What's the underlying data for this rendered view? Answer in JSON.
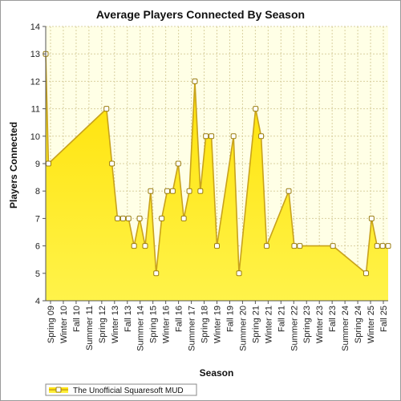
{
  "chart_data": {
    "type": "area",
    "title": "Average Players Connected By Season",
    "xlabel": "Season",
    "ylabel": "Players Connected",
    "ylim": [
      4,
      14
    ],
    "yticks": [
      4,
      5,
      6,
      7,
      8,
      9,
      10,
      11,
      12,
      13,
      14
    ],
    "grid": true,
    "legend_position": "bottom-left",
    "x_axis_labels": [
      "Spring 09",
      "Winter 10",
      "Fall 10",
      "Summer 11",
      "Spring 12",
      "Winter 13",
      "Fall 13",
      "Summer 14",
      "Spring 15",
      "Winter 16",
      "Fall 16",
      "Summer 17",
      "Spring 18",
      "Winter 19",
      "Fall 19",
      "Summer 20",
      "Spring 21",
      "Winter 21",
      "Fall 21",
      "Summer 22",
      "Spring 23",
      "Winter 23",
      "Fall 23",
      "Summer 24",
      "Spring 24",
      "Winter 25",
      "Fall 25"
    ],
    "series": [
      {
        "name": "The Unofficial Squaresoft MUD",
        "x": [
          0,
          0.5,
          11,
          12,
          13,
          14,
          15,
          16,
          17,
          18,
          19,
          20,
          21,
          22,
          23,
          24,
          25,
          26,
          27,
          28,
          29,
          30,
          31,
          34,
          35,
          38,
          39,
          40,
          44,
          45,
          46,
          52,
          58,
          59,
          60,
          61,
          62
        ],
        "values": [
          13,
          9,
          11,
          9,
          7,
          7,
          7,
          6,
          7,
          6,
          8,
          5,
          7,
          8,
          8,
          9,
          7,
          8,
          12,
          8,
          10,
          10,
          6,
          10,
          5,
          11,
          10,
          6,
          8,
          6,
          6,
          6,
          5,
          7,
          6,
          6,
          6
        ]
      }
    ],
    "colors": {
      "plot_background": "#ffffe6",
      "area_top": "#ffe000",
      "area_bottom": "#fff34a",
      "line": "#c8a21c",
      "marker_fill": "#ffffff",
      "marker_stroke": "#9a7d10",
      "grid": "#d9d0a0"
    }
  }
}
